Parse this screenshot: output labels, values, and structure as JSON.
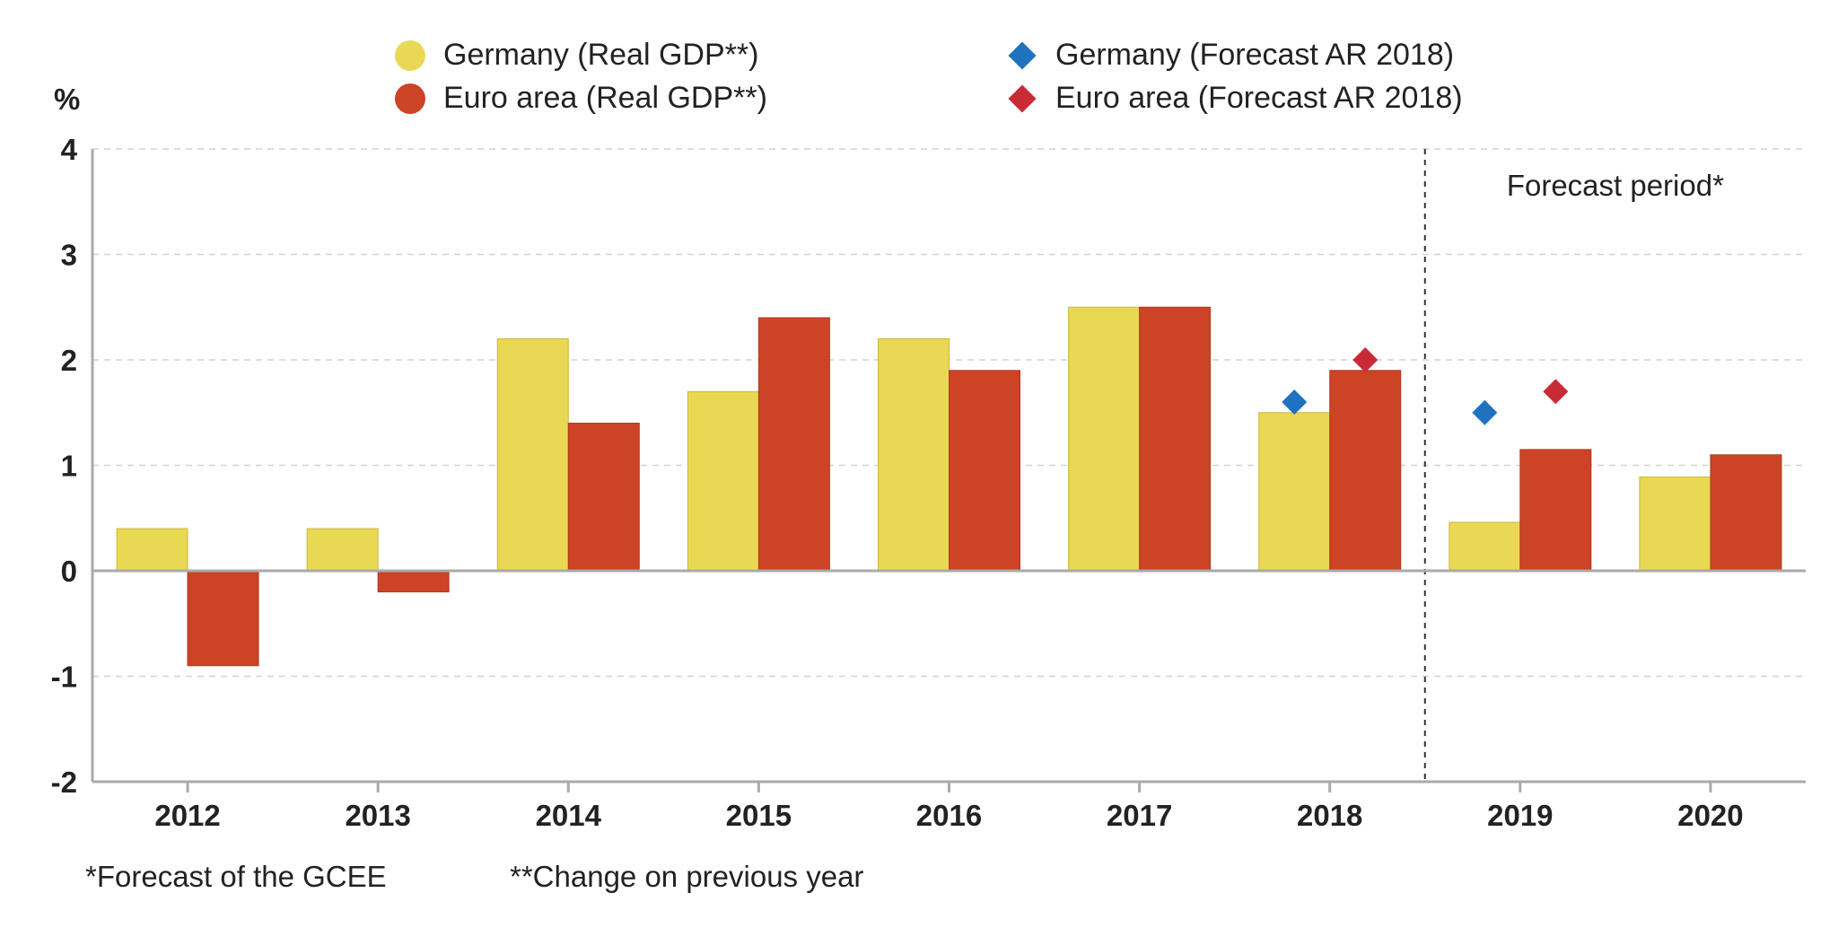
{
  "chart_data": {
    "type": "bar",
    "unit_label": "%",
    "categories": [
      "2012",
      "2013",
      "2014",
      "2015",
      "2016",
      "2017",
      "2018",
      "2019",
      "2020"
    ],
    "series": [
      {
        "name": "Germany (Real GDP**)",
        "color": "#e9d853",
        "values": [
          0.4,
          0.4,
          2.2,
          1.7,
          2.2,
          2.5,
          1.5,
          0.46,
          0.89
        ]
      },
      {
        "name": "Euro area (Real GDP**)",
        "color": "#cc4425",
        "values": [
          -0.9,
          -0.2,
          1.4,
          2.4,
          1.9,
          2.5,
          1.9,
          1.15,
          1.1
        ]
      }
    ],
    "markers": [
      {
        "name": "Germany (Forecast AR 2018)",
        "color": "#1f72bf",
        "points": [
          {
            "x": "2018",
            "y": 1.6
          },
          {
            "x": "2019",
            "y": 1.5
          }
        ]
      },
      {
        "name": "Euro area (Forecast AR 2018)",
        "color": "#c82b35",
        "points": [
          {
            "x": "2018",
            "y": 2.0
          },
          {
            "x": "2019",
            "y": 1.7
          }
        ]
      }
    ],
    "ylim": [
      -2,
      4
    ],
    "yticks": [
      -2,
      -1,
      0,
      1,
      2,
      3,
      4
    ],
    "grid": true,
    "forecast_divider_after": "2018",
    "forecast_label": "Forecast period*",
    "legend_position": "top"
  },
  "footnotes": {
    "forecast": "*Forecast of the GCEE",
    "change": "**Change on previous year"
  }
}
